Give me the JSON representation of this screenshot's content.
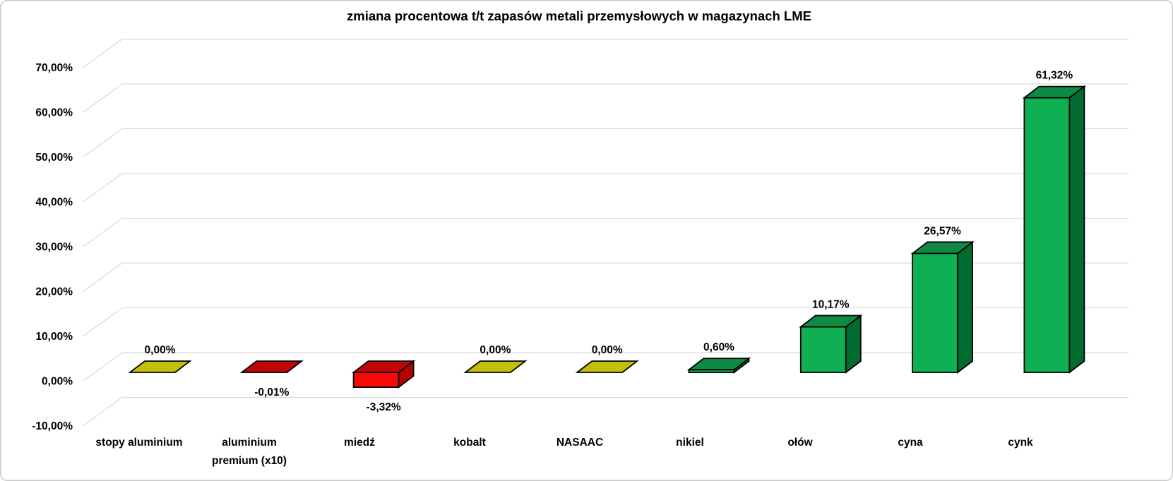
{
  "chart_data": {
    "type": "bar",
    "subtype": "3d-column",
    "title": "zmiana procentowa t/t zapasów metali przemysłowych w magazynach LME",
    "categories": [
      "stopy aluminium",
      "aluminium\npremium (x10)",
      "miedź",
      "kobalt",
      "NASAAC",
      "nikiel",
      "ołów",
      "cyna",
      "cynk"
    ],
    "values": [
      0,
      -0.01,
      -3.32,
      0,
      0,
      0.6,
      10.17,
      26.57,
      61.32
    ],
    "value_labels": [
      "0,00%",
      "-0,01%",
      "-3,32%",
      "0,00%",
      "0,00%",
      "0,60%",
      "10,17%",
      "26,57%",
      "61,32%"
    ],
    "xlabel": "",
    "ylabel": "",
    "ylim": [
      -10,
      70
    ],
    "ytick_step": 10,
    "ytick_values": [
      70,
      60,
      50,
      40,
      30,
      20,
      10,
      0,
      -10
    ],
    "ytick_labels": [
      "70,00%",
      "60,00%",
      "50,00%",
      "40,00%",
      "30,00%",
      "20,00%",
      "10,00%",
      "0,00%",
      "-10,00%"
    ],
    "grid": true,
    "legend": false,
    "colors": {
      "positive": {
        "front": "#0FAF53",
        "top": "#0F8A43",
        "side": "#026B30"
      },
      "negative": {
        "front": "#FA0909",
        "top": "#C00707",
        "side": "#B00404"
      },
      "zero": {
        "front": "#A3A208",
        "top": "#C1C00A",
        "side": "#8F8E06"
      },
      "gridline": "#D9D9D9",
      "outline": "#000000",
      "text": "#000000",
      "frame": "#C9C9C9"
    }
  }
}
